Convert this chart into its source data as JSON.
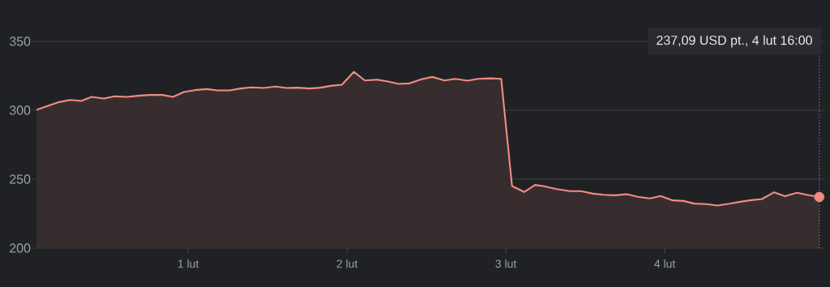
{
  "chart_data": {
    "type": "area",
    "x": [
      0.046,
      0.122,
      0.182,
      0.259,
      0.327,
      0.393,
      0.469,
      0.539,
      0.616,
      0.684,
      0.76,
      0.837,
      0.905,
      0.973,
      1.041,
      1.117,
      1.185,
      1.262,
      1.33,
      1.398,
      1.474,
      1.551,
      1.619,
      1.687,
      1.764,
      1.832,
      1.899,
      1.968,
      2.044,
      2.112,
      2.189,
      2.257,
      2.325,
      2.393,
      2.469,
      2.537,
      2.614,
      2.682,
      2.759,
      2.827,
      2.903,
      2.971,
      3.039,
      3.116,
      3.184,
      3.235,
      3.32,
      3.405,
      3.473,
      3.549,
      3.617,
      3.685,
      3.762,
      3.83,
      3.907,
      3.974,
      4.051,
      4.119,
      4.187,
      4.264,
      4.332,
      4.408,
      4.476,
      4.544,
      4.612,
      4.689,
      4.757,
      4.833,
      4.901,
      4.973
    ],
    "series": [
      {
        "color": "#f28b82",
        "values": [
          300.3,
          303.4,
          305.8,
          307.5,
          306.8,
          309.7,
          308.5,
          310.1,
          309.7,
          310.5,
          311.1,
          311.1,
          309.7,
          313.2,
          314.6,
          315.4,
          314.4,
          314.4,
          315.8,
          316.6,
          316.2,
          317.2,
          316.2,
          316.4,
          315.8,
          316.4,
          317.7,
          318.5,
          327.9,
          321.6,
          322.2,
          320.9,
          319.1,
          319.5,
          322.5,
          324.2,
          321.6,
          322.8,
          321.5,
          322.8,
          323.2,
          322.8,
          245.0,
          240.7,
          245.8,
          245.0,
          242.8,
          241.3,
          241.3,
          239.5,
          238.7,
          238.3,
          239.1,
          237.2,
          236.0,
          237.8,
          234.6,
          234.2,
          232.3,
          231.9,
          230.9,
          232.2,
          233.6,
          234.8,
          235.6,
          240.5,
          237.6,
          240.1,
          238.5,
          237.1
        ]
      },
      {
        "type": "scatter",
        "color": "#f28b82",
        "marker": "circle",
        "x": [
          4.973
        ],
        "values": [
          237.1
        ]
      }
    ],
    "xlim": [
      0.02,
      5.01
    ],
    "ylim": [
      200,
      380
    ],
    "xticks": [
      {
        "value": 1,
        "label": "1 lut"
      },
      {
        "value": 2,
        "label": "2 lut"
      },
      {
        "value": 3,
        "label": "3 lut"
      },
      {
        "value": 4,
        "label": "4 lut"
      }
    ],
    "yticks": [
      200,
      250,
      300,
      350
    ],
    "grid": "y",
    "ref_lines": [
      {
        "axis": "x",
        "value": 4.973,
        "line_style": "dotted",
        "color": "#9aa0a6"
      }
    ],
    "annotations": [
      "237,09 USD  pt., 4 lut 16:00"
    ]
  }
}
